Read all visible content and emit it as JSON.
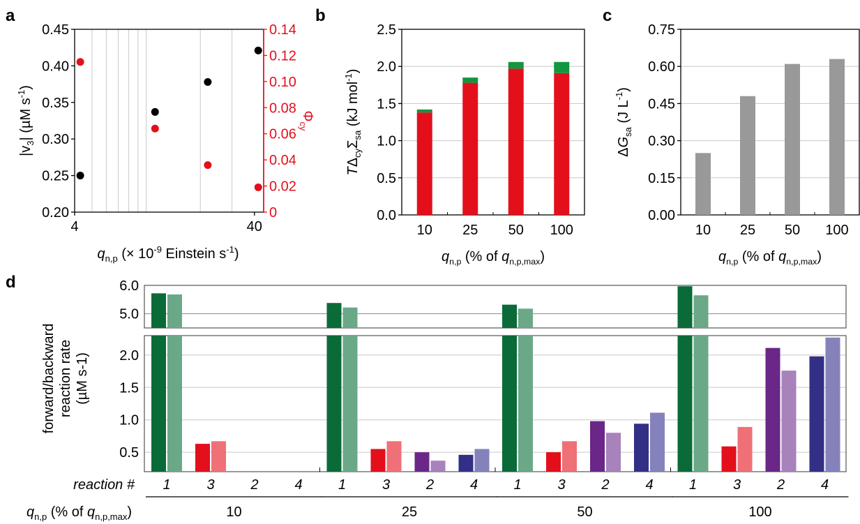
{
  "colors": {
    "black": "#000000",
    "red": "#e3101c",
    "green": "#129640",
    "grey": "#999999",
    "grid": "#c8c8c8",
    "r1_fwd": "#0a6b38",
    "r1_bwd": "#6aa888",
    "r3_fwd": "#e3101c",
    "r3_bwd": "#f07078",
    "r2_fwd": "#6a2787",
    "r2_bwd": "#a782bb",
    "r4_fwd": "#332e86",
    "r4_bwd": "#8582bb"
  },
  "chart_data": [
    {
      "panel": "a",
      "type": "scatter",
      "xscale": "log",
      "xlim": [
        4,
        45
      ],
      "x_ticks": [
        "4",
        "40"
      ],
      "xlabel_parts": [
        "q",
        "n,p",
        "(× 10",
        "-9",
        "Einstein s",
        "-1",
        ")"
      ],
      "ylabel_left_parts": [
        "|v",
        "3",
        "| (µM s",
        "-1",
        ")"
      ],
      "ylabel_right": "Φcy",
      "ylabel_right_parts": [
        "Φ",
        "cy"
      ],
      "ylim_left": [
        0.2,
        0.45
      ],
      "yticks_left": [
        "0.20",
        "0.25",
        "0.30",
        "0.35",
        "0.40",
        "0.45"
      ],
      "ylim_right": [
        0,
        0.14
      ],
      "yticks_right": [
        "0",
        "0.02",
        "0.04",
        "0.06",
        "0.08",
        "0.10",
        "0.12",
        "0.14"
      ],
      "series": [
        {
          "axis": "left",
          "color": "black",
          "points": [
            [
              4.3,
              0.25
            ],
            [
              11.2,
              0.337
            ],
            [
              22,
              0.378
            ],
            [
              42,
              0.421
            ]
          ]
        },
        {
          "axis": "right",
          "color": "red",
          "points": [
            [
              4.3,
              0.115
            ],
            [
              11.2,
              0.064
            ],
            [
              22,
              0.036
            ],
            [
              42,
              0.019
            ]
          ]
        }
      ]
    },
    {
      "panel": "b",
      "type": "bar",
      "stacked": true,
      "categories": [
        "10",
        "25",
        "50",
        "100"
      ],
      "series": [
        {
          "color": "red",
          "values": [
            1.38,
            1.78,
            1.97,
            1.91
          ]
        },
        {
          "color": "green",
          "values": [
            0.04,
            0.07,
            0.09,
            0.15
          ]
        }
      ],
      "ylim": [
        0,
        2.5
      ],
      "yticks": [
        "0.0",
        "0.5",
        "1.0",
        "1.5",
        "2.0",
        "2.5"
      ],
      "ylabel_parts": [
        "T",
        "Δ",
        "cy",
        "Σ",
        "sa",
        " (kJ mol",
        "-1",
        ")"
      ],
      "xlabel_parts": [
        "q",
        "n,p",
        " (% of ",
        "q",
        "n,p,max",
        ")"
      ]
    },
    {
      "panel": "c",
      "type": "bar",
      "categories": [
        "10",
        "25",
        "50",
        "100"
      ],
      "values": [
        0.25,
        0.48,
        0.61,
        0.63
      ],
      "ylim": [
        0,
        0.75
      ],
      "yticks": [
        "0.00",
        "0.15",
        "0.30",
        "0.45",
        "0.60",
        "0.75"
      ],
      "ylabel_parts": [
        "Δ",
        "G",
        "sa",
        " (J L",
        "-1",
        ")"
      ],
      "xlabel_parts": [
        "q",
        "n,p",
        " (% of ",
        "q",
        "n,p,max",
        ")"
      ]
    },
    {
      "panel": "d",
      "type": "bar",
      "broken_y_axis": true,
      "ylim_lower": [
        0.2,
        2.3
      ],
      "ylim_upper": [
        4.5,
        6.0
      ],
      "yticks_lower": [
        "0.5",
        "1.0",
        "1.5",
        "2.0"
      ],
      "yticks_upper": [
        "5.0",
        "6.0"
      ],
      "ylabel_lines": [
        "forward/backward",
        "reaction rate",
        "(µM s-1)"
      ],
      "row_label": "reaction #",
      "reactions": [
        "1",
        "3",
        "2",
        "4"
      ],
      "groups": [
        {
          "label": "10",
          "forward": [
            5.72,
            0.63,
            0.2,
            0.16
          ],
          "backward": [
            5.68,
            0.67,
            0.11,
            0.2
          ]
        },
        {
          "label": "25",
          "forward": [
            5.38,
            0.55,
            0.5,
            0.46
          ],
          "backward": [
            5.22,
            0.67,
            0.37,
            0.55
          ]
        },
        {
          "label": "50",
          "forward": [
            5.32,
            0.5,
            0.98,
            0.94
          ],
          "backward": [
            5.18,
            0.67,
            0.8,
            1.11
          ]
        },
        {
          "label": "100",
          "forward": [
            5.97,
            0.59,
            2.11,
            1.98
          ],
          "backward": [
            5.65,
            0.89,
            1.76,
            2.27
          ]
        }
      ],
      "group_axis_label_parts": [
        "q",
        "n,p",
        " (% of ",
        "q",
        "n,p,max",
        ")"
      ]
    }
  ],
  "panel_labels": [
    "a",
    "b",
    "c",
    "d"
  ]
}
